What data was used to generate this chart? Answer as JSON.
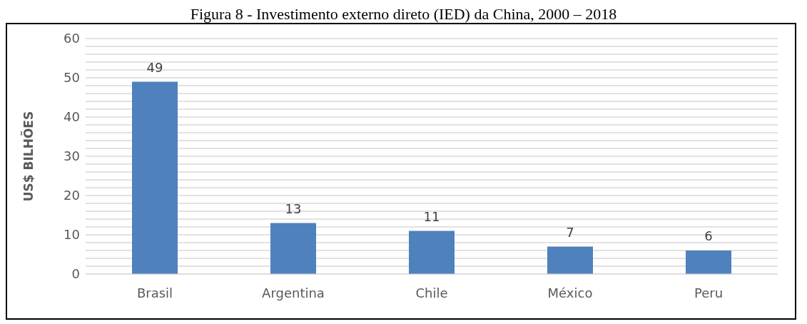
{
  "chart_data": {
    "type": "bar",
    "title": "Figura 8 - Investimento externo direto (IED) da China, 2000 – 2018",
    "ylabel": "US$ BILHÕES",
    "categories": [
      "Brasil",
      "Argentina",
      "Chile",
      "México",
      "Peru"
    ],
    "values": [
      49,
      13,
      11,
      7,
      6
    ],
    "color": "#4f81bd",
    "data_labels": true,
    "ylim": [
      0,
      60
    ],
    "yticks": [
      0,
      {
        "value": 2,
        "label": null
      },
      {
        "value": 4,
        "label": null
      },
      {
        "value": 6,
        "label": null
      },
      {
        "value": 8,
        "label": null
      },
      10,
      {
        "value": 12,
        "label": null
      },
      {
        "value": 14,
        "label": null
      },
      {
        "value": 16,
        "label": null
      },
      {
        "value": 18,
        "label": null
      },
      20,
      {
        "value": 22,
        "label": null
      },
      {
        "value": 24,
        "label": null
      },
      {
        "value": 26,
        "label": null
      },
      {
        "value": 28,
        "label": null
      },
      30,
      {
        "value": 32,
        "label": null
      },
      {
        "value": 34,
        "label": null
      },
      {
        "value": 36,
        "label": null
      },
      {
        "value": 38,
        "label": null
      },
      40,
      {
        "value": 42,
        "label": null
      },
      {
        "value": 44,
        "label": null
      },
      {
        "value": 46,
        "label": null
      },
      {
        "value": 48,
        "label": null
      },
      50,
      {
        "value": 52,
        "label": null
      },
      {
        "value": 54,
        "label": null
      },
      {
        "value": 56,
        "label": null
      },
      {
        "value": 58,
        "label": null
      },
      60
    ],
    "grid": "y"
  }
}
